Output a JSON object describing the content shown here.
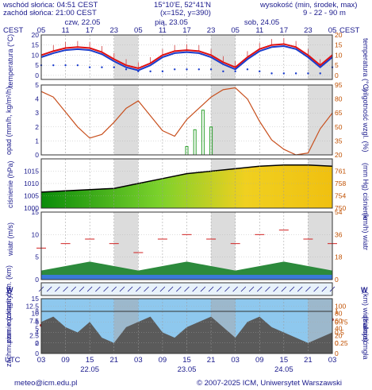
{
  "header": {
    "sunrise": "wschód słońca: 04:51 CEST",
    "sunset": "zachód słońca: 21:00 CEST",
    "coords": "15°10'E, 52°41'N",
    "grid": "(x=152, y=390)",
    "elev_label": "wysokość (min, środek, max)",
    "elev_value": "9 - 22 - 90 m",
    "tz_left": "CEST",
    "tz_right": "CEST",
    "utc": "UTC"
  },
  "days_top": [
    "czw, 22.05",
    "pią, 23.05",
    "sob, 24.05"
  ],
  "hours_top": [
    "05",
    "11",
    "17",
    "23",
    "05",
    "11",
    "17",
    "23",
    "05",
    "11",
    "17",
    "23",
    "05"
  ],
  "hours_bottom": [
    "03",
    "09",
    "15",
    "21",
    "03",
    "09",
    "15",
    "21",
    "03",
    "09",
    "15",
    "21",
    "03"
  ],
  "days_bottom": [
    "22.05",
    "23.05",
    "24.05"
  ],
  "footer": {
    "email": "meteo@icm.edu.pl",
    "copyright": "© 2007-2025 ICM, Uniwersytet Warszawski"
  },
  "panels": {
    "temp": {
      "left": "temperatura (°C)",
      "right": "temperatura (°C)"
    },
    "precip": {
      "left": "opad (mm/h, kg/m²/h)",
      "right": "wilgotność wzgl. (%)"
    },
    "pressure": {
      "left": "ciśnienie (hPa)",
      "right": "(mm Hg) ciśnienie"
    },
    "wind": {
      "left": "wiatr (m/s)",
      "right": "(km/h) wiatr"
    },
    "winddir": {
      "left": "W",
      "right": "W"
    },
    "cloudbase": {
      "left": "pion. rozciągł. chm. (km)",
      "right": "(km) widzialność"
    },
    "cloud": {
      "left": "zachmurzenie (oktanty)",
      "right": "(frakcja) mgła"
    }
  },
  "chart_data": [
    {
      "type": "line",
      "name": "temperature",
      "ylim": [
        -2,
        20
      ],
      "yticks": [
        0,
        5,
        10,
        15,
        20
      ],
      "yticks_right": [
        0,
        5,
        10,
        15,
        20
      ],
      "hours_from_start": [
        0,
        3,
        6,
        9,
        12,
        15,
        18,
        21,
        24,
        27,
        30,
        33,
        36,
        39,
        42,
        45,
        48,
        51,
        54,
        57,
        60,
        63,
        66,
        69,
        72
      ],
      "max": [
        10,
        12,
        13.5,
        14,
        13.5,
        11.5,
        8,
        5,
        3.5,
        6,
        10,
        12,
        12.5,
        12,
        10,
        6.5,
        4,
        9,
        13,
        15,
        15.5,
        14,
        10,
        5,
        10
      ],
      "mean": [
        9,
        11,
        12.5,
        13,
        12.5,
        10.5,
        7,
        4,
        2.5,
        5,
        9,
        11,
        11.5,
        11,
        9,
        5.5,
        3,
        8,
        12,
        14,
        14.5,
        13,
        9,
        4,
        9
      ],
      "dew": [
        5,
        5,
        5,
        5,
        4,
        4,
        4,
        3,
        2,
        2,
        2,
        3,
        3,
        3,
        3,
        2,
        2,
        3,
        2,
        1,
        1,
        1,
        1,
        1,
        4
      ]
    },
    {
      "type": "line",
      "name": "precip_humidity",
      "ylim": [
        0,
        5
      ],
      "yticks": [
        0,
        1,
        2,
        3,
        4,
        5
      ],
      "yticks_right": [
        20,
        35,
        50,
        65,
        80,
        95
      ],
      "hours_from_start": [
        0,
        3,
        6,
        9,
        12,
        15,
        18,
        21,
        24,
        27,
        30,
        33,
        36,
        39,
        42,
        45,
        48,
        51,
        54,
        57,
        60,
        63,
        66,
        69,
        72
      ],
      "humidity": [
        88,
        82,
        66,
        50,
        38,
        42,
        55,
        70,
        78,
        62,
        46,
        40,
        58,
        70,
        82,
        90,
        92,
        80,
        56,
        36,
        26,
        20,
        22,
        48,
        65
      ]
    },
    {
      "type": "area",
      "name": "pressure",
      "ylim": [
        1000,
        1020
      ],
      "yticks": [
        1000,
        1005,
        1010,
        1015
      ],
      "yticks_right": [
        750,
        754,
        758,
        761
      ],
      "hours_from_start": [
        0,
        6,
        12,
        18,
        24,
        30,
        36,
        42,
        48,
        54,
        60,
        66,
        72
      ],
      "values": [
        1006.5,
        1007,
        1007.5,
        1008,
        1010,
        1012,
        1014,
        1015,
        1016,
        1017,
        1017.5,
        1017.5,
        1017
      ]
    },
    {
      "type": "line",
      "name": "wind",
      "ylim": [
        0,
        15
      ],
      "yticks": [
        0,
        5,
        10,
        15
      ],
      "yticks_right": [
        0,
        18,
        36,
        54
      ],
      "hours_from_start": [
        0,
        6,
        12,
        18,
        24,
        30,
        36,
        42,
        48,
        54,
        60,
        66,
        72
      ],
      "gust": [
        7,
        8,
        9,
        8,
        6,
        9,
        10,
        9,
        8,
        10,
        11,
        9,
        8
      ],
      "mean": [
        2,
        3,
        4,
        3,
        2,
        3,
        4,
        3,
        2,
        3,
        4,
        3,
        2
      ]
    },
    {
      "type": "scatter",
      "name": "cloudbase_visibility",
      "ylim": [
        0,
        15
      ],
      "yticks": [
        0,
        2.5,
        5,
        7.5,
        10,
        12.5,
        15
      ],
      "yticks_right": [
        0,
        20,
        40,
        60,
        80,
        100
      ],
      "hours_from_start": [
        0,
        6,
        12,
        18,
        24,
        30,
        36,
        42,
        48,
        54,
        60,
        66,
        72
      ],
      "visibility": [
        9,
        9.5,
        10,
        9.5,
        9,
        9.5,
        10,
        9.5,
        9,
        9.5,
        10,
        9.5,
        9
      ]
    },
    {
      "type": "area",
      "name": "cloud_fog",
      "ylim": [
        0,
        8
      ],
      "yticks": [
        0,
        2,
        4,
        6,
        8
      ],
      "yticks_right": [
        0,
        0.25,
        0.5,
        0.75,
        1
      ],
      "hours_from_start": [
        0,
        3,
        6,
        9,
        12,
        15,
        18,
        21,
        24,
        27,
        30,
        33,
        36,
        39,
        42,
        45,
        48,
        51,
        54,
        57,
        60,
        63,
        66,
        69,
        72
      ],
      "total": [
        6,
        7,
        5,
        4,
        6,
        3,
        2,
        5,
        6,
        7,
        4,
        3,
        5,
        6,
        7,
        5,
        3,
        6,
        7,
        5,
        4,
        3,
        2,
        3,
        4
      ]
    }
  ]
}
